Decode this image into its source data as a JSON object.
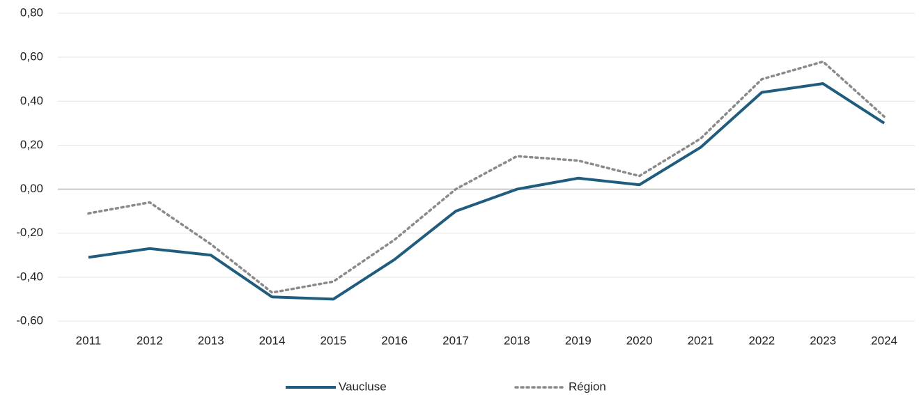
{
  "chart_data": {
    "type": "line",
    "categories": [
      "2011",
      "2012",
      "2013",
      "2014",
      "2015",
      "2016",
      "2017",
      "2018",
      "2019",
      "2020",
      "2021",
      "2022",
      "2023",
      "2024"
    ],
    "series": [
      {
        "name": "Vaucluse",
        "color": "#1f5c7e",
        "style": "solid",
        "values": [
          -0.31,
          -0.27,
          -0.3,
          -0.49,
          -0.5,
          -0.32,
          -0.1,
          0.0,
          0.05,
          0.02,
          0.19,
          0.44,
          0.48,
          0.3
        ]
      },
      {
        "name": "Région",
        "color": "#8a8a8a",
        "style": "dotted",
        "values": [
          -0.11,
          -0.06,
          -0.25,
          -0.47,
          -0.42,
          -0.23,
          0.0,
          0.15,
          0.13,
          0.06,
          0.23,
          0.5,
          0.58,
          0.33
        ]
      }
    ],
    "ylim": [
      -0.6,
      0.8
    ],
    "yticks": [
      {
        "value": -0.6,
        "label": "-0,60"
      },
      {
        "value": -0.4,
        "label": "-0,40"
      },
      {
        "value": -0.2,
        "label": "-0,20"
      },
      {
        "value": 0,
        "label": "0,00"
      },
      {
        "value": 0.2,
        "label": "0,20"
      },
      {
        "value": 0.4,
        "label": "0,40"
      },
      {
        "value": 0.6,
        "label": "0,60"
      },
      {
        "value": 0.8,
        "label": "0,80"
      }
    ],
    "grid": true,
    "legend": "bottom"
  }
}
